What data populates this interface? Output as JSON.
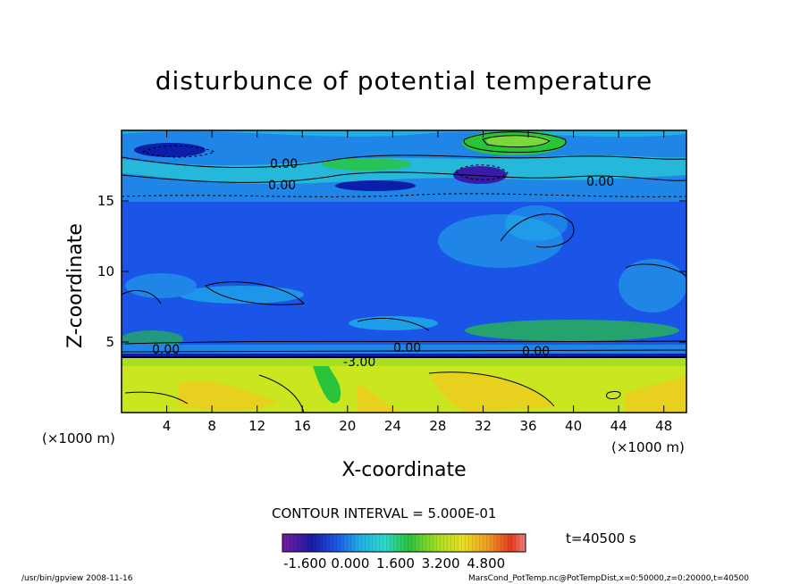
{
  "chart_data": {
    "type": "heatmap",
    "title": "disturbunce of potential temperature",
    "xlabel": "X-coordinate",
    "ylabel": "Z-coordinate",
    "x_unit_left": "(×1000 m)",
    "x_unit_right": "(×1000 m)",
    "xlim": [
      0,
      50
    ],
    "ylim": [
      0,
      20
    ],
    "x_ticks": [
      "4",
      "8",
      "12",
      "16",
      "20",
      "24",
      "28",
      "32",
      "36",
      "40",
      "44",
      "48"
    ],
    "y_ticks": [
      "5",
      "10",
      "15"
    ],
    "contour_interval": "CONTOUR INTERVAL = 5.000E-01",
    "contour_labels": [
      "0.00",
      "0.00",
      "0.00",
      "-3.00",
      "0.00",
      "0.00",
      "0.00"
    ],
    "colorbar_ticks": [
      "-1.600",
      "0.000",
      "1.600",
      "3.200",
      "4.800"
    ],
    "colorbar_range": [
      -2.4,
      6.2
    ],
    "time_label": "t=40500 s",
    "regions": {
      "upper_layer_z": [
        15,
        20
      ],
      "mid_layer_z": [
        4.5,
        15
      ],
      "low_layer_z": [
        0,
        4.2
      ]
    }
  },
  "footer": {
    "left": "/usr/bin/gpview   2008-11-16",
    "right": "MarsCond_PotTemp.nc@PotTempDist,x=0:50000,z=0:20000,t=40500"
  },
  "colors": {
    "low_layer": "#c9e61e",
    "mid_layer": "#1a55e8",
    "upper_band": "#1fb0e8",
    "dark_blue": "#0a1ea8",
    "green": "#29c43a"
  }
}
